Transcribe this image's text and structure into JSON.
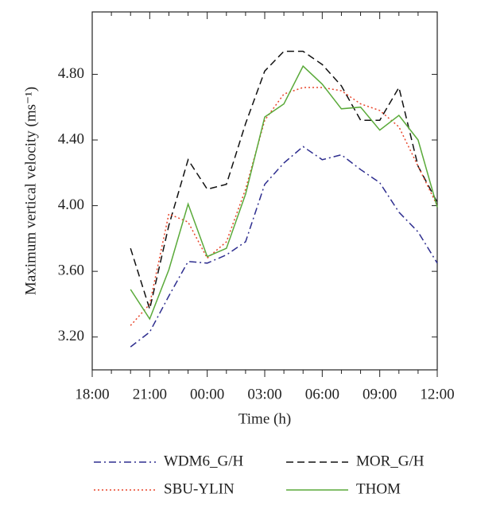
{
  "chart_data": {
    "type": "line",
    "xlabel": "Time (h)",
    "ylabel": "Maximum vertical velocity (ms⁻¹)",
    "categories": [
      "18:00",
      null,
      null,
      "21:00",
      null,
      null,
      "00:00",
      null,
      null,
      "03:00",
      null,
      null,
      "06:00",
      null,
      null,
      "09:00",
      null,
      null,
      "12:00"
    ],
    "series": [
      {
        "name": "WDM6_G/H",
        "color": "#2e2e8f",
        "dash": "dashdot",
        "values": [
          null,
          null,
          3.14,
          3.23,
          3.45,
          3.66,
          3.65,
          3.7,
          3.78,
          4.13,
          4.26,
          4.36,
          4.28,
          4.31,
          4.22,
          4.14,
          3.96,
          3.84,
          3.65
        ]
      },
      {
        "name": "MOR_G/H",
        "color": "#111111",
        "dash": "dashed",
        "values": [
          null,
          null,
          3.74,
          3.37,
          3.88,
          4.28,
          4.1,
          4.13,
          4.5,
          4.82,
          4.94,
          4.94,
          4.86,
          4.73,
          4.52,
          4.52,
          4.72,
          4.24,
          4.02
        ]
      },
      {
        "name": "SBU-YLIN",
        "color": "#e8452a",
        "dash": "dotted",
        "values": [
          null,
          null,
          3.27,
          3.4,
          3.95,
          3.9,
          3.68,
          3.78,
          4.1,
          4.52,
          4.68,
          4.72,
          4.72,
          4.7,
          4.62,
          4.58,
          4.48,
          4.24,
          4.0
        ]
      },
      {
        "name": "THOM",
        "color": "#5aaa3a",
        "dash": "solid",
        "values": [
          null,
          null,
          3.49,
          3.31,
          3.61,
          4.01,
          3.69,
          3.74,
          4.07,
          4.54,
          4.62,
          4.85,
          4.74,
          4.59,
          4.6,
          4.46,
          4.55,
          4.4,
          3.99
        ]
      }
    ],
    "ylim": [
      3.0,
      5.18
    ],
    "yticks": [
      {
        "value": 3.2,
        "label": "3.20"
      },
      {
        "value": 3.6,
        "label": "3.60"
      },
      {
        "value": 4.0,
        "label": "4.00"
      },
      {
        "value": 4.4,
        "label": "4.40"
      },
      {
        "value": 4.8,
        "label": "4.80"
      }
    ],
    "grid": false,
    "legend": "bottom"
  }
}
